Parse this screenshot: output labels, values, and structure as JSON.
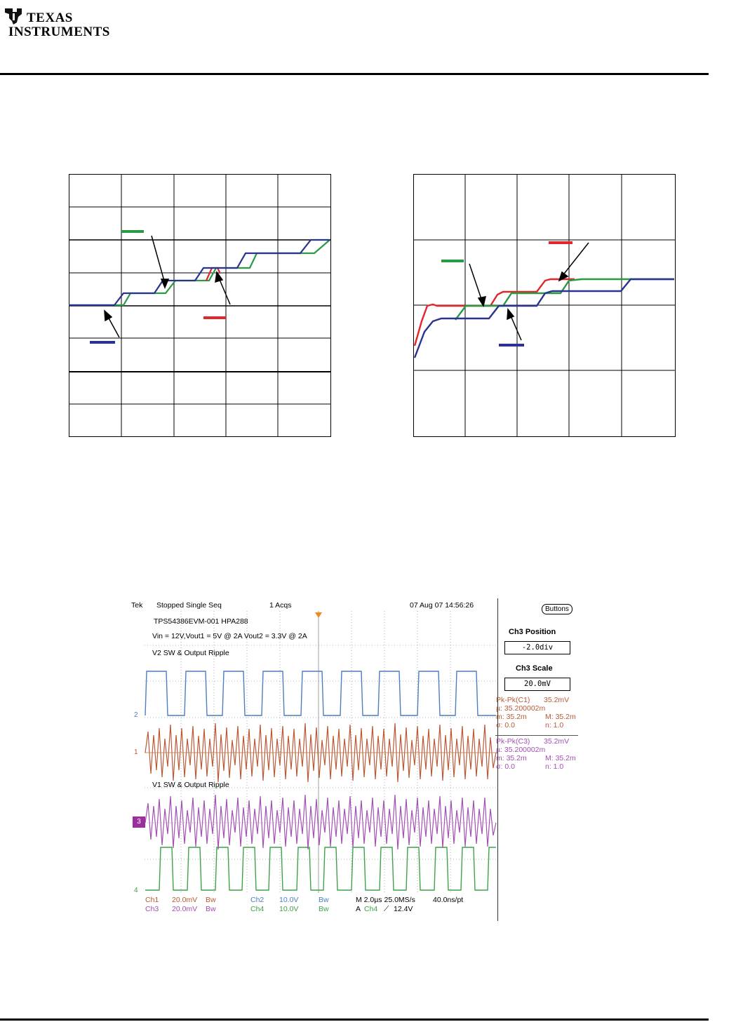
{
  "header": {
    "logo_line1": "TEXAS",
    "logo_line2": "INSTRUMENTS",
    "logo_icon": "ti-state-logo-icon"
  },
  "colors": {
    "green": "#2a9a45",
    "red": "#e3262b",
    "blue": "#2b3390",
    "scope_blue": "#4d7dc2",
    "scope_orange": "#b85a35",
    "scope_purple": "#a44fb4",
    "scope_green": "#3fa24b"
  },
  "scope": {
    "status": {
      "tek": "Tek",
      "state": "Stopped  Single Seq",
      "acqs": "1 Acqs",
      "datetime": "07 Aug 07 14:56:26"
    },
    "notes": {
      "board": "TPS54386EVM-001 HPA288",
      "conditions": "Vin = 12V,Vout1 = 5V @ 2A Vout2 = 3.3V @ 2A",
      "v2_label": "V2 SW & Output Ripple",
      "v1_label": "V1 SW & Output Ripple"
    },
    "markers": {
      "m2": "2",
      "m1": "1",
      "m3": "3",
      "m4": "4"
    },
    "controls": {
      "buttons_label": "Buttons",
      "position_title": "Ch3 Position",
      "position_value": "-2.0div",
      "scale_title": "Ch3 Scale",
      "scale_value": "20.0mV"
    },
    "measurements_c1": {
      "pkpk_label": "Pk-Pk(C1)",
      "pkpk_value": "35.2mV",
      "mu": "µ: 35.200002m",
      "min": "m: 35.2m",
      "max": "M: 35.2m",
      "sigma": "σ: 0.0",
      "n": "n:  1.0"
    },
    "measurements_c3": {
      "pkpk_label": "Pk-Pk(C3)",
      "pkpk_value": "35.2mV",
      "mu": "µ: 35.200002m",
      "min": "m: 35.2m",
      "max": "M: 35.2m",
      "sigma": "σ: 0.0",
      "n": "n:  1.0"
    },
    "channel_settings": {
      "ch1_label": "Ch1",
      "ch1_value": "20.0mV",
      "ch3_label": "Ch3",
      "ch3_value": "20.0mV",
      "ch2_label": "Ch2",
      "ch2_value": "10.0V",
      "ch4_label": "Ch4",
      "ch4_value": "10.0V",
      "bw1": "Bw",
      "bw2": "Bw",
      "bw3": "Bw",
      "bw4": "Bw",
      "timebase": "M 2.0µs 25.0MS/s",
      "pts": "40.0ns/pt",
      "trigger_a": "A",
      "trigger_ch": "Ch4",
      "trigger_level": "12.4V"
    }
  }
}
